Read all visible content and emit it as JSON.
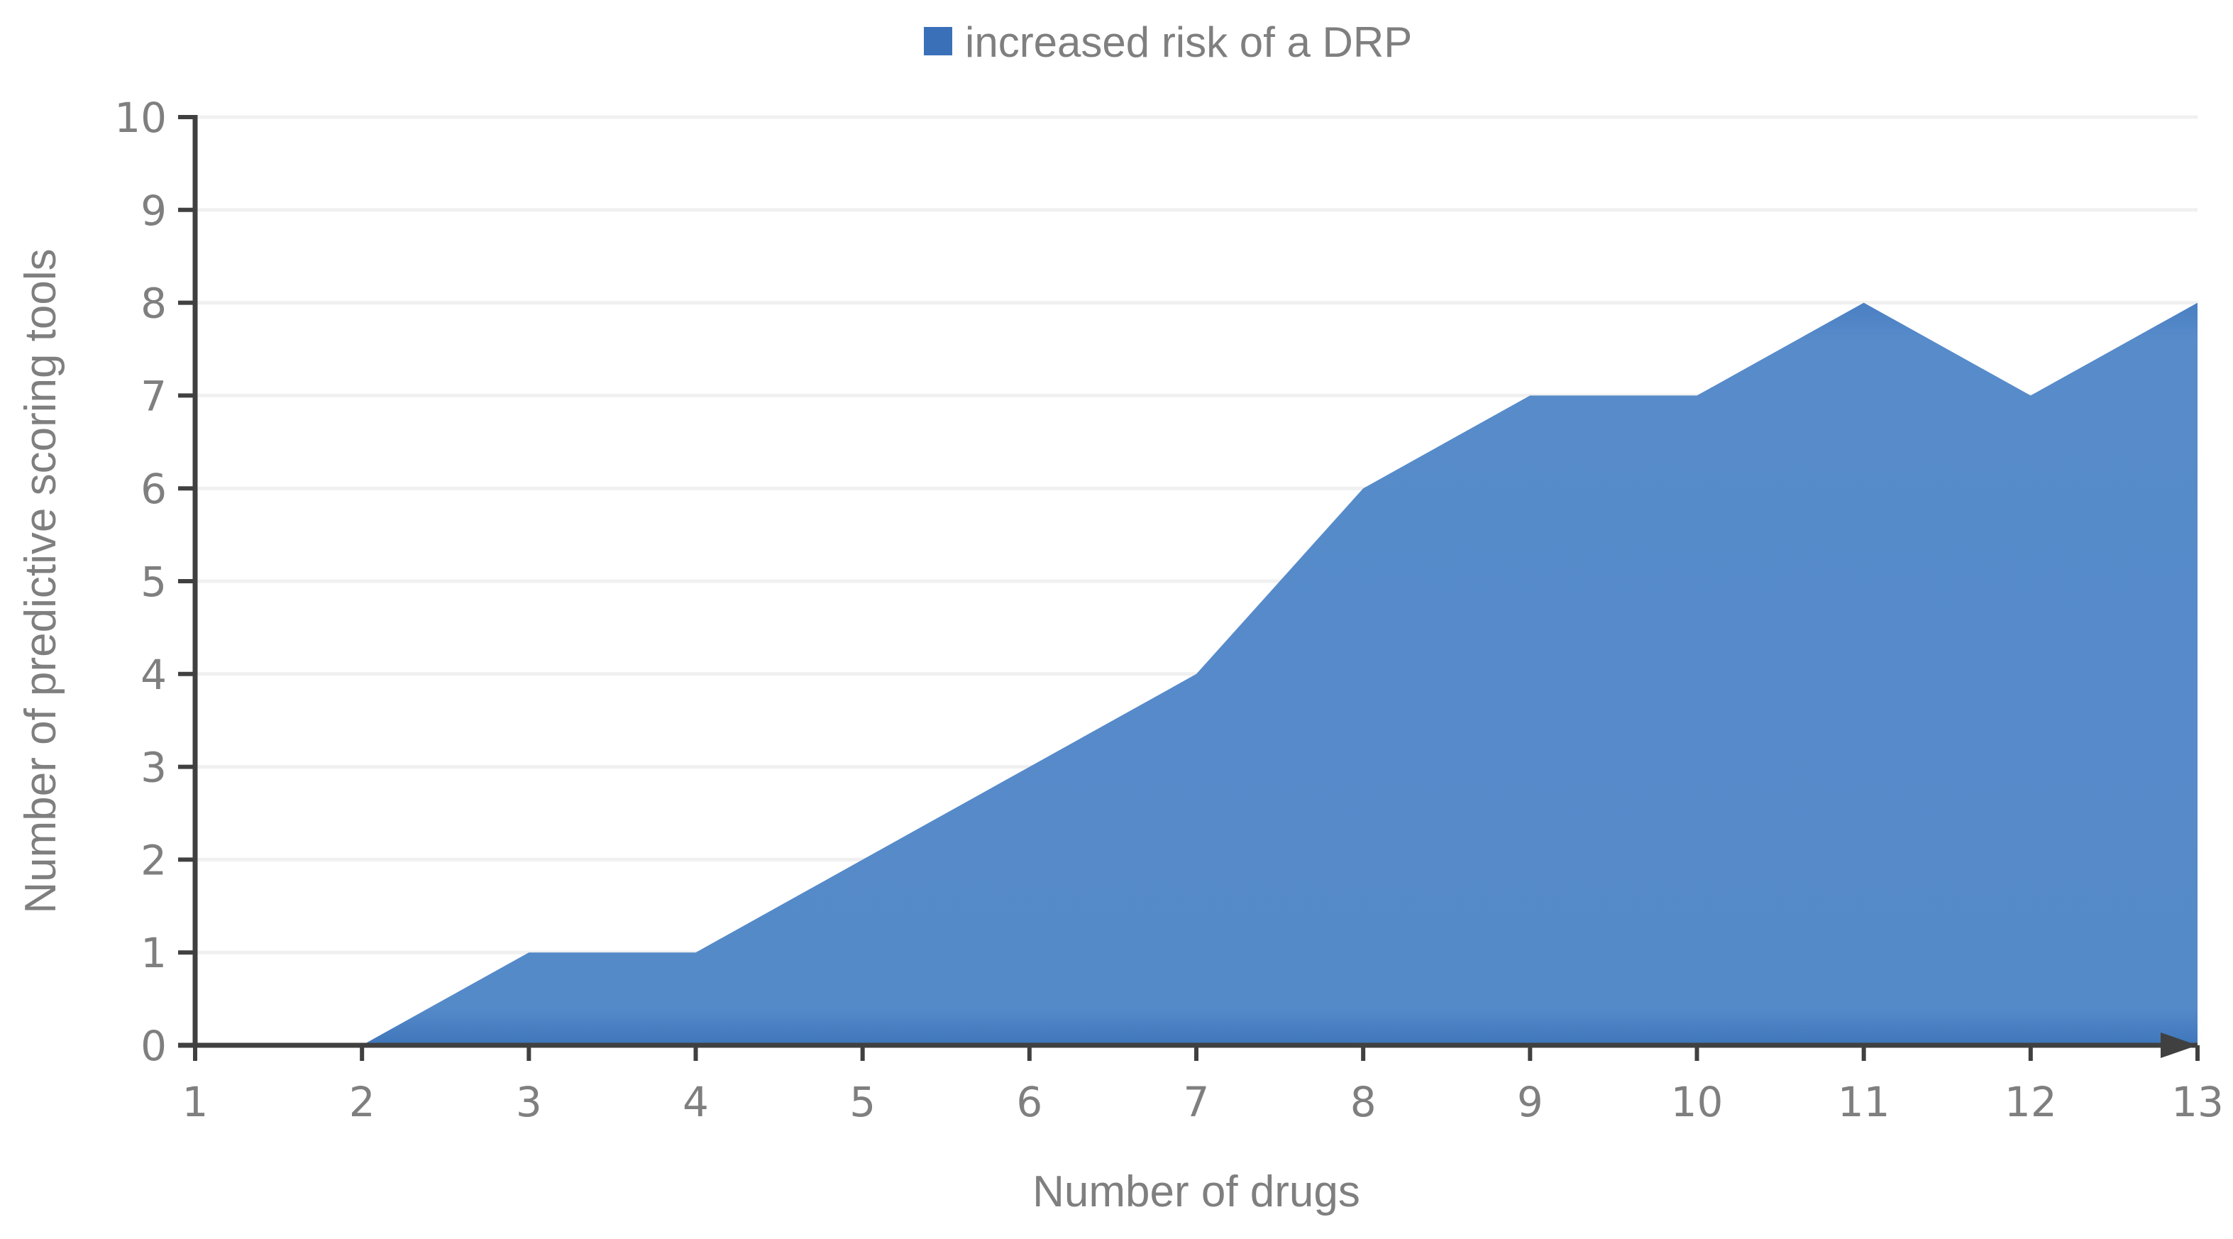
{
  "chart_data": {
    "type": "area",
    "title": "",
    "xlabel": "Number of drugs",
    "ylabel": "Number of predictive scoring tools",
    "x": [
      1,
      2,
      3,
      4,
      5,
      6,
      7,
      8,
      9,
      10,
      11,
      12,
      13
    ],
    "series": [
      {
        "name": "increased risk of a DRP",
        "color": "#4a7fc4",
        "values": [
          null,
          0,
          1,
          1,
          2,
          3,
          4,
          6,
          7,
          7,
          8,
          7,
          8
        ]
      }
    ],
    "xlim": [
      1,
      13
    ],
    "ylim": [
      0,
      10
    ],
    "xticks": [
      "1",
      "2",
      "3",
      "4",
      "5",
      "6",
      "7",
      "8",
      "9",
      "10",
      "11",
      "12",
      "13"
    ],
    "yticks": [
      "0",
      "1",
      "2",
      "3",
      "4",
      "5",
      "6",
      "7",
      "8",
      "9",
      "10"
    ],
    "grid": "horizontal",
    "legend_position": "top-center",
    "axis_color": "#404040",
    "grid_color": "#f0f0f0"
  }
}
